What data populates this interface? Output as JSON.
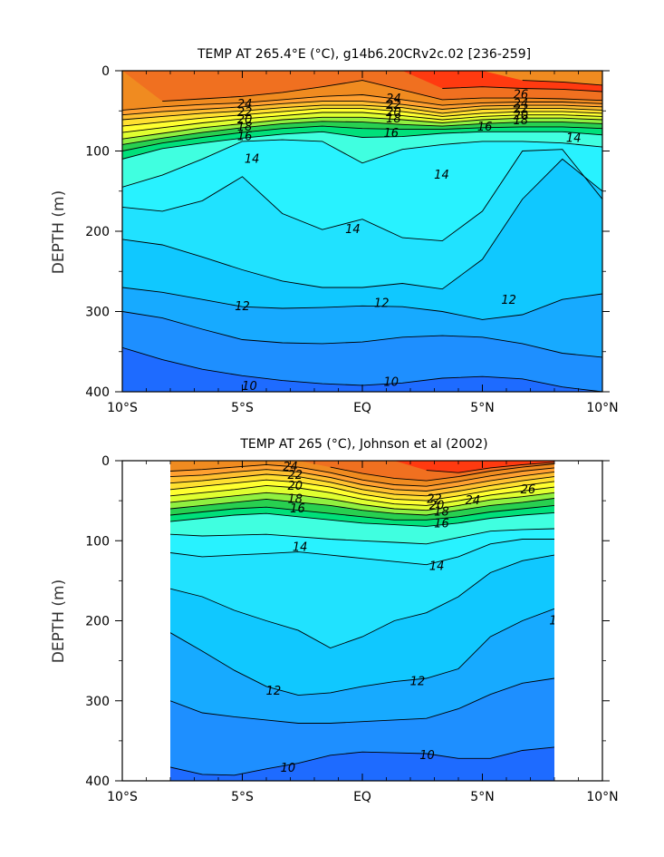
{
  "chart_data": [
    {
      "type": "heatmap",
      "subtype": "filled-contour",
      "title": "TEMP AT 265.4°E (°C), g14b6.20CRv2c.02 [236-259]",
      "xlabel": "",
      "ylabel": "DEPTH (m)",
      "x_ticks": [
        "10°S",
        "5°S",
        "EQ",
        "5°N",
        "10°N"
      ],
      "x_tick_values": [
        -10,
        -5,
        0,
        5,
        10
      ],
      "y_ticks": [
        "0",
        "100",
        "200",
        "300",
        "400"
      ],
      "y_tick_values": [
        0,
        100,
        200,
        300,
        400
      ],
      "xlim": [
        -10,
        10
      ],
      "ylim": [
        400,
        0
      ],
      "data_xrange": [
        -10,
        10
      ],
      "contour_labels": [
        {
          "text": "24",
          "x": -4.9,
          "depth": 42
        },
        {
          "text": "22",
          "x": -4.9,
          "depth": 52
        },
        {
          "text": "20",
          "x": -4.9,
          "depth": 61
        },
        {
          "text": "18",
          "x": -4.9,
          "depth": 70
        },
        {
          "text": "16",
          "x": -4.9,
          "depth": 82
        },
        {
          "text": "14",
          "x": -4.6,
          "depth": 110
        },
        {
          "text": "24",
          "x": 1.3,
          "depth": 35
        },
        {
          "text": "22",
          "x": 1.3,
          "depth": 43
        },
        {
          "text": "20",
          "x": 1.3,
          "depth": 52
        },
        {
          "text": "18",
          "x": 1.3,
          "depth": 60
        },
        {
          "text": "16",
          "x": 1.2,
          "depth": 78
        },
        {
          "text": "26",
          "x": 6.6,
          "depth": 30
        },
        {
          "text": "24",
          "x": 6.6,
          "depth": 41
        },
        {
          "text": "22",
          "x": 6.6,
          "depth": 48
        },
        {
          "text": "20",
          "x": 6.6,
          "depth": 56
        },
        {
          "text": "18",
          "x": 6.6,
          "depth": 62
        },
        {
          "text": "16",
          "x": 5.1,
          "depth": 70
        },
        {
          "text": "14",
          "x": 8.8,
          "depth": 84
        },
        {
          "text": "14",
          "x": 3.3,
          "depth": 130
        },
        {
          "text": "14",
          "x": -0.4,
          "depth": 198
        },
        {
          "text": "12",
          "x": -5.0,
          "depth": 294
        },
        {
          "text": "12",
          "x": 0.8,
          "depth": 290
        },
        {
          "text": "12",
          "x": 6.1,
          "depth": 286
        },
        {
          "text": "10",
          "x": -4.7,
          "depth": 393
        },
        {
          "text": "10",
          "x": 1.2,
          "depth": 388
        }
      ],
      "contours": [
        {
          "level": 10,
          "depth": [
            345,
            360,
            372,
            380,
            386,
            390,
            392,
            389,
            383,
            381,
            384,
            394,
            400
          ]
        },
        {
          "level": 11,
          "depth": [
            300,
            308,
            322,
            335,
            339,
            340,
            338,
            332,
            330,
            332,
            340,
            352,
            357
          ]
        },
        {
          "level": 12,
          "depth": [
            270,
            276,
            285,
            294,
            296,
            295,
            293,
            294,
            300,
            310,
            304,
            285,
            278
          ]
        },
        {
          "level": 13,
          "depth": [
            210,
            217,
            232,
            248,
            262,
            270,
            270,
            265,
            272,
            235,
            160,
            110,
            150
          ]
        },
        {
          "level": 14,
          "depth": [
            170,
            175,
            162,
            132,
            178,
            198,
            185,
            208,
            212,
            175,
            100,
            98,
            160
          ]
        },
        {
          "level": 15,
          "depth": [
            145,
            130,
            110,
            88,
            86,
            88,
            115,
            98,
            92,
            88,
            88,
            90,
            95
          ]
        },
        {
          "level": 16,
          "depth": [
            110,
            97,
            90,
            84,
            79,
            76,
            83,
            82,
            78,
            76,
            76,
            76,
            80
          ]
        },
        {
          "level": 17,
          "depth": [
            100,
            90,
            83,
            77,
            72,
            69,
            72,
            73,
            73,
            71,
            70,
            70,
            72
          ]
        },
        {
          "level": 18,
          "depth": [
            92,
            84,
            77,
            71,
            66,
            63,
            64,
            67,
            69,
            66,
            64,
            64,
            66
          ]
        },
        {
          "level": 19,
          "depth": [
            85,
            78,
            71,
            66,
            61,
            58,
            58,
            61,
            65,
            61,
            59,
            59,
            61
          ]
        },
        {
          "level": 20,
          "depth": [
            77,
            71,
            65,
            60,
            56,
            52,
            52,
            56,
            61,
            57,
            55,
            55,
            57
          ]
        },
        {
          "level": 21,
          "depth": [
            69,
            64,
            59,
            55,
            51,
            47,
            47,
            51,
            57,
            53,
            51,
            51,
            53
          ]
        },
        {
          "level": 22,
          "depth": [
            61,
            57,
            53,
            50,
            46,
            43,
            43,
            46,
            53,
            48,
            47,
            47,
            49
          ]
        },
        {
          "level": 23,
          "depth": [
            55,
            51,
            48,
            45,
            41,
            38,
            38,
            42,
            48,
            44,
            43,
            43,
            45
          ]
        },
        {
          "level": 24,
          "depth": [
            49,
            45,
            42,
            40,
            36,
            32,
            30,
            36,
            43,
            40,
            39,
            39,
            41
          ]
        },
        {
          "level": 25,
          "depth": [
            null,
            38,
            35,
            32,
            27,
            20,
            12,
            24,
            36,
            34,
            34,
            35,
            37
          ]
        },
        {
          "level": 26,
          "depth": [
            null,
            null,
            null,
            null,
            null,
            null,
            null,
            null,
            22,
            20,
            22,
            23,
            26
          ]
        },
        {
          "level": 27,
          "depth": [
            null,
            null,
            null,
            null,
            null,
            null,
            null,
            null,
            null,
            null,
            12,
            14,
            18
          ]
        }
      ]
    },
    {
      "type": "heatmap",
      "subtype": "filled-contour",
      "title": "TEMP AT 265 (°C), Johnson et al (2002)",
      "xlabel": "",
      "ylabel": "DEPTH (m)",
      "x_ticks": [
        "10°S",
        "5°S",
        "EQ",
        "5°N",
        "10°N"
      ],
      "x_tick_values": [
        -10,
        -5,
        0,
        5,
        10
      ],
      "y_ticks": [
        "0",
        "100",
        "200",
        "300",
        "400"
      ],
      "y_tick_values": [
        0,
        100,
        200,
        300,
        400
      ],
      "xlim": [
        -10,
        10
      ],
      "ylim": [
        400,
        0
      ],
      "data_xrange": [
        -8,
        8
      ],
      "contour_labels": [
        {
          "text": "24",
          "x": -3.0,
          "depth": 8
        },
        {
          "text": "22",
          "x": -2.8,
          "depth": 18
        },
        {
          "text": "20",
          "x": -2.8,
          "depth": 32
        },
        {
          "text": "18",
          "x": -2.8,
          "depth": 48
        },
        {
          "text": "16",
          "x": -2.7,
          "depth": 60
        },
        {
          "text": "22",
          "x": 3.0,
          "depth": 48
        },
        {
          "text": "20",
          "x": 3.1,
          "depth": 56
        },
        {
          "text": "18",
          "x": 3.3,
          "depth": 64
        },
        {
          "text": "16",
          "x": 3.3,
          "depth": 79
        },
        {
          "text": "24",
          "x": 4.6,
          "depth": 50
        },
        {
          "text": "26",
          "x": 6.9,
          "depth": 36
        },
        {
          "text": "14",
          "x": -2.6,
          "depth": 108
        },
        {
          "text": "14",
          "x": 3.1,
          "depth": 132
        },
        {
          "text": "12",
          "x": 8.1,
          "depth": 200
        },
        {
          "text": "12",
          "x": -3.7,
          "depth": 288
        },
        {
          "text": "12",
          "x": 2.3,
          "depth": 276
        },
        {
          "text": "10",
          "x": -3.1,
          "depth": 384
        },
        {
          "text": "10",
          "x": 2.7,
          "depth": 368
        }
      ],
      "contours": [
        {
          "level": 10,
          "depth": [
            383,
            392,
            393,
            385,
            378,
            368,
            364,
            365,
            366,
            372,
            372,
            362,
            358
          ]
        },
        {
          "level": 11,
          "depth": [
            300,
            315,
            320,
            324,
            328,
            328,
            326,
            324,
            322,
            310,
            292,
            278,
            272
          ]
        },
        {
          "level": 12,
          "depth": [
            215,
            238,
            262,
            282,
            293,
            290,
            282,
            276,
            272,
            260,
            220,
            200,
            185
          ]
        },
        {
          "level": 13,
          "depth": [
            160,
            170,
            187,
            200,
            212,
            234,
            220,
            200,
            190,
            170,
            140,
            125,
            118
          ]
        },
        {
          "level": 14,
          "depth": [
            115,
            120,
            118,
            116,
            114,
            118,
            122,
            126,
            130,
            120,
            104,
            98,
            98
          ]
        },
        {
          "level": 15,
          "depth": [
            92,
            94,
            93,
            92,
            95,
            98,
            100,
            102,
            104,
            96,
            88,
            86,
            85
          ]
        },
        {
          "level": 16,
          "depth": [
            76,
            72,
            68,
            66,
            70,
            74,
            78,
            80,
            82,
            78,
            72,
            68,
            65
          ]
        },
        {
          "level": 17,
          "depth": [
            68,
            64,
            60,
            58,
            62,
            66,
            70,
            74,
            74,
            70,
            64,
            60,
            56
          ]
        },
        {
          "level": 18,
          "depth": [
            60,
            56,
            52,
            48,
            52,
            56,
            62,
            66,
            68,
            62,
            56,
            52,
            47
          ]
        },
        {
          "level": 19,
          "depth": [
            52,
            48,
            44,
            40,
            43,
            48,
            55,
            60,
            62,
            56,
            49,
            45,
            40
          ]
        },
        {
          "level": 20,
          "depth": [
            44,
            40,
            36,
            31,
            34,
            40,
            48,
            54,
            56,
            50,
            43,
            38,
            33
          ]
        },
        {
          "level": 21,
          "depth": [
            36,
            32,
            28,
            24,
            27,
            33,
            42,
            48,
            50,
            44,
            37,
            31,
            26
          ]
        },
        {
          "level": 22,
          "depth": [
            28,
            25,
            21,
            17,
            20,
            27,
            36,
            42,
            44,
            38,
            31,
            25,
            20
          ]
        },
        {
          "level": 23,
          "depth": [
            20,
            18,
            14,
            11,
            14,
            21,
            30,
            36,
            38,
            32,
            25,
            19,
            14
          ]
        },
        {
          "level": 24,
          "depth": [
            13,
            11,
            8,
            5,
            8,
            15,
            24,
            30,
            32,
            26,
            19,
            13,
            9
          ]
        },
        {
          "level": 25,
          "depth": [
            null,
            null,
            null,
            null,
            null,
            8,
            16,
            22,
            25,
            20,
            13,
            8,
            4
          ]
        },
        {
          "level": 26,
          "depth": [
            null,
            null,
            null,
            null,
            null,
            null,
            null,
            null,
            12,
            15,
            9,
            5,
            2
          ]
        },
        {
          "level": 27,
          "depth": [
            null,
            null,
            null,
            null,
            null,
            null,
            null,
            null,
            null,
            null,
            null,
            null,
            null
          ]
        }
      ]
    }
  ],
  "colors": {
    "scale": [
      "#1e6bff",
      "#1e8fff",
      "#17aaff",
      "#10c8ff",
      "#20e2ff",
      "#28f2ff",
      "#40ffe0",
      "#00e07a",
      "#28d050",
      "#90f040",
      "#e0ff30",
      "#ffff30",
      "#ffe030",
      "#ffc030",
      "#ffa030",
      "#f08b20",
      "#f07020",
      "#ff3a10",
      "#e01010"
    ],
    "scale_levels": [
      9,
      10,
      11,
      12,
      13,
      14,
      15,
      16,
      17,
      18,
      19,
      20,
      21,
      22,
      23,
      24,
      25,
      26,
      27
    ]
  }
}
